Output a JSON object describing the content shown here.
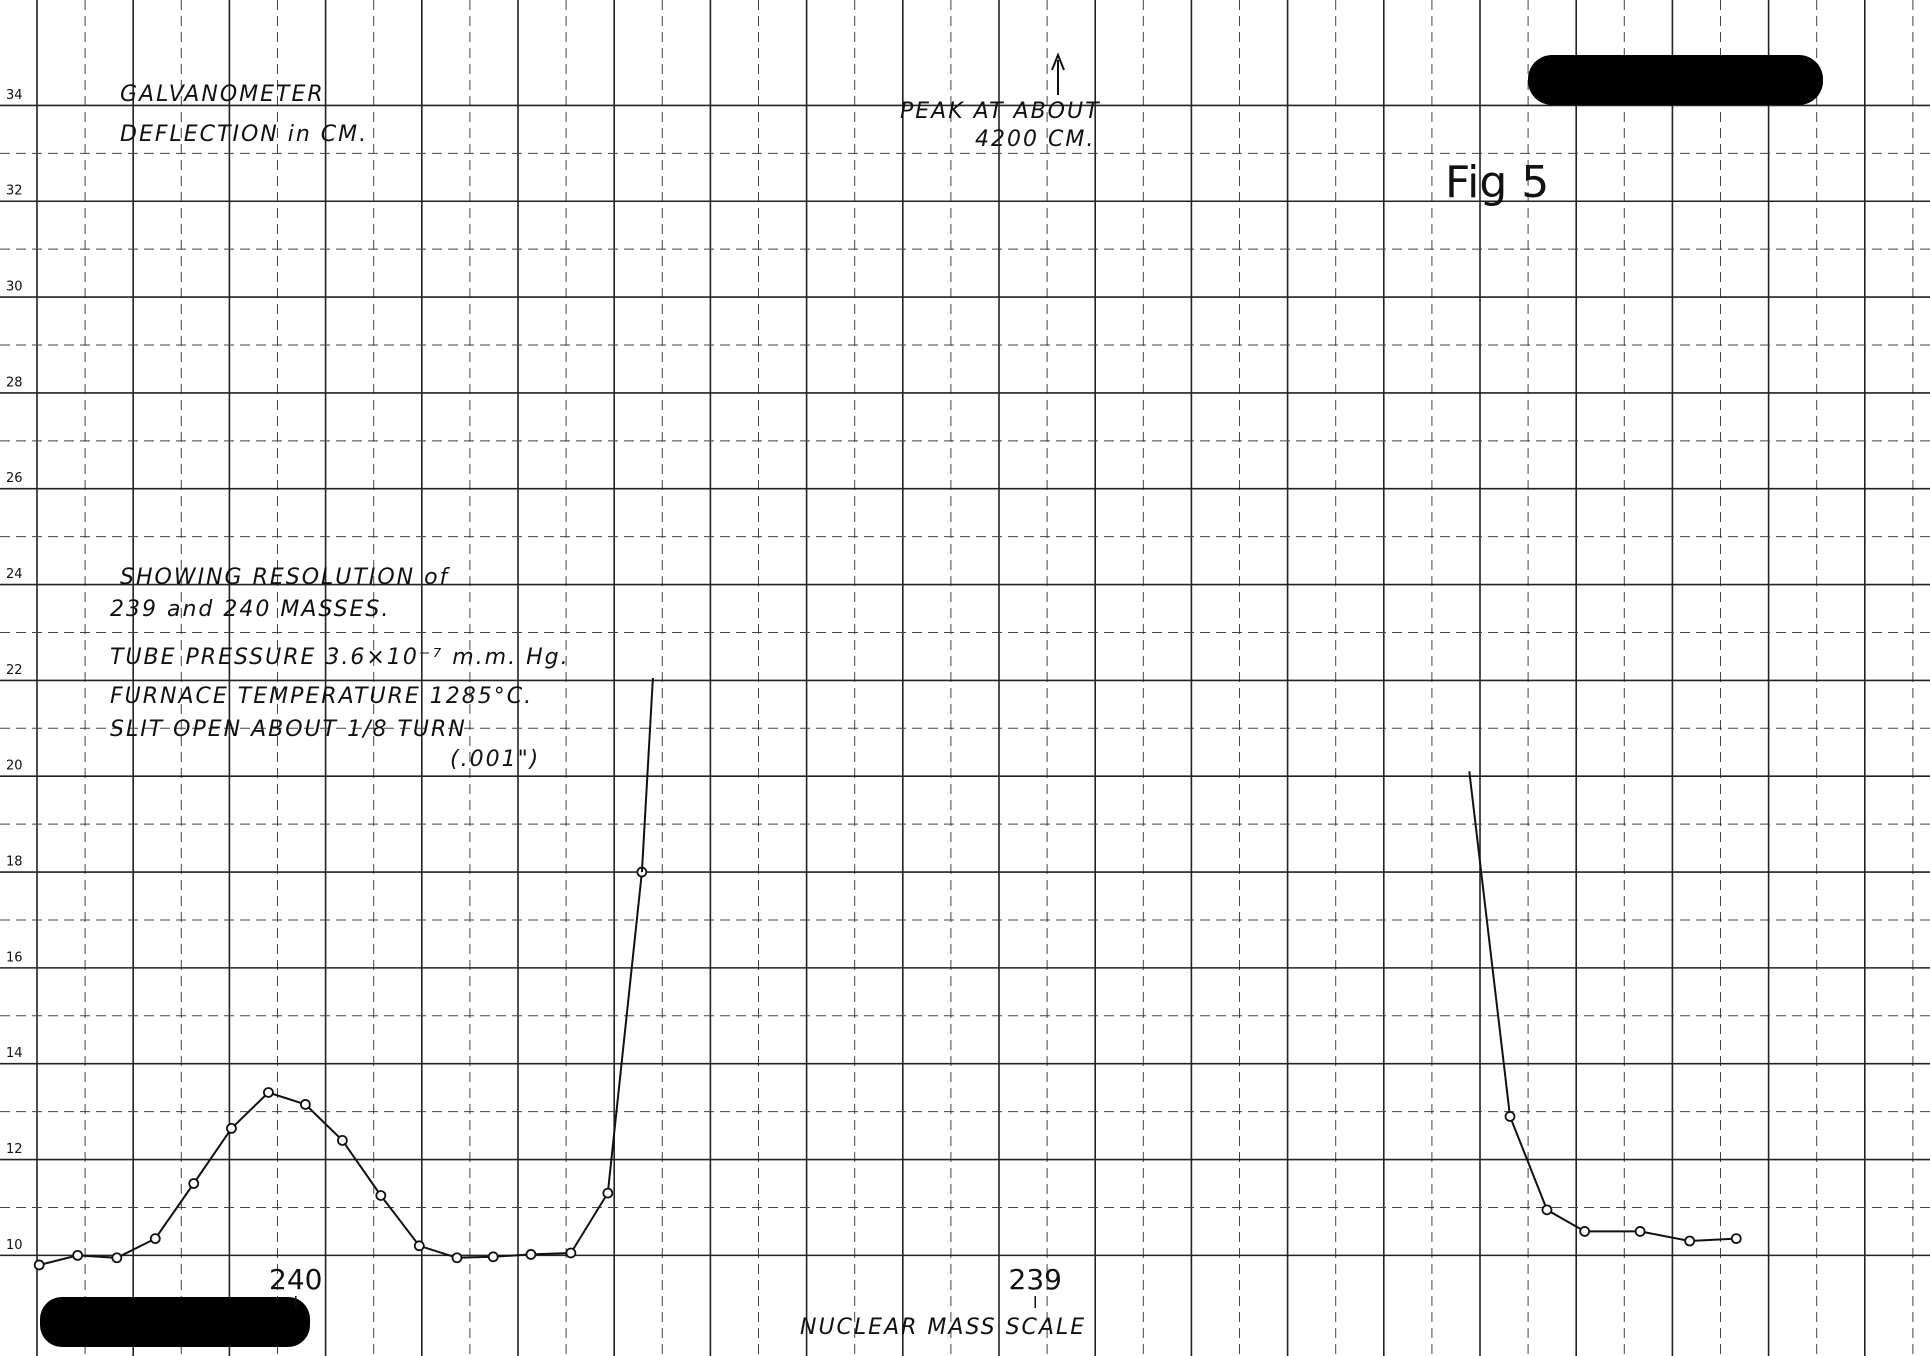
{
  "chart_data": {
    "type": "line",
    "title": "Fig 5",
    "y_label_lines": [
      "GALVANOMETER",
      "DEFLECTION in CM."
    ],
    "x_label": "NUCLEAR MASS SCALE",
    "annotations": {
      "peak": [
        "PEAK AT ABOUT",
        "4200 CM."
      ],
      "notes": [
        "SHOWING RESOLUTION of",
        "239 and 240 MASSES.",
        "TUBE PRESSURE 3.6×10⁻⁷ m.m. Hg.",
        "FURNACE TEMPERATURE 1285°C.",
        "SLIT OPEN ABOUT 1/8 TURN",
        "(.001\")"
      ]
    },
    "xlim": [
      240.4,
      237.79
    ],
    "xticks": [
      240,
      239
    ],
    "ylim": [
      7.9,
      36.2
    ],
    "yticks": [
      10,
      12,
      14,
      16,
      18,
      20,
      22,
      24,
      26,
      28,
      30,
      32,
      34
    ],
    "grid": true,
    "color": "#111111",
    "series": [
      {
        "x": [
          240.347,
          240.295,
          240.242,
          240.19,
          240.138,
          240.087,
          240.037,
          239.987,
          239.937,
          239.885,
          239.833,
          239.782,
          239.733,
          239.682,
          239.628,
          239.578,
          239.532
        ],
        "values": [
          9.8,
          10.0,
          9.95,
          10.35,
          11.5,
          12.65,
          13.4,
          13.15,
          12.4,
          11.25,
          10.2,
          9.95,
          9.97,
          10.02,
          10.05,
          11.3,
          18.0
        ],
        "marker": true
      },
      {
        "x": [
          239.532,
          239.517
        ],
        "values": [
          18.0,
          22.05
        ],
        "marker": false
      },
      {
        "x": [
          238.413,
          238.358
        ],
        "values": [
          20.1,
          12.9
        ],
        "marker": false
      },
      {
        "x": [
          238.358,
          238.308,
          238.257,
          238.182,
          238.115,
          238.052
        ],
        "values": [
          12.9,
          10.95,
          10.5,
          10.5,
          10.3,
          10.35
        ],
        "marker": true
      }
    ]
  }
}
